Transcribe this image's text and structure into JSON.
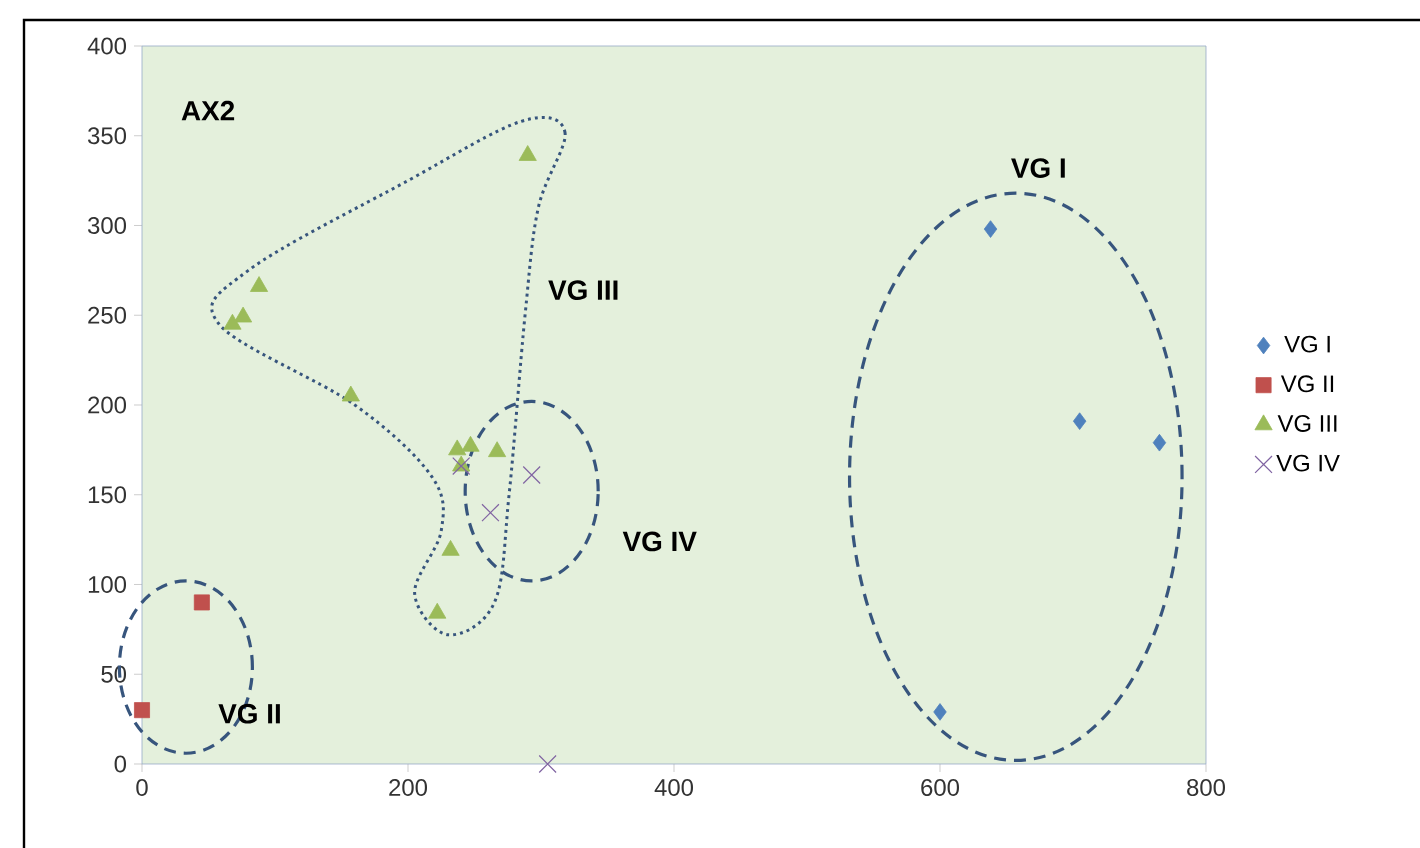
{
  "chart_data": {
    "type": "scatter",
    "xlim": [
      0,
      800
    ],
    "ylim": [
      0,
      400
    ],
    "xticks": [
      0,
      200,
      400,
      600,
      800
    ],
    "yticks": [
      0,
      50,
      100,
      150,
      200,
      250,
      300,
      350,
      400
    ],
    "grid": false,
    "legend": "right",
    "annotations": [
      "AX2",
      "VG I",
      "VG II",
      "VG III",
      "VG IV"
    ],
    "series": [
      {
        "name": "VG I",
        "color": "#4f81bd",
        "marker": "diamond",
        "x": [
          638,
          705,
          765,
          600
        ],
        "values": [
          298,
          191,
          179,
          29
        ]
      },
      {
        "name": "VG II",
        "color": "#c0504d",
        "marker": "square",
        "x": [
          0,
          45
        ],
        "values": [
          30,
          90
        ]
      },
      {
        "name": "VG III",
        "color": "#9bbb59",
        "marker": "triangle",
        "x": [
          290,
          88,
          76,
          68,
          157,
          237,
          247,
          267,
          240,
          232,
          222
        ],
        "values": [
          339,
          266,
          249,
          245,
          205,
          175,
          177,
          174,
          166,
          119,
          84
        ]
      },
      {
        "name": "VG IV",
        "color": "#8064a2",
        "marker": "cross",
        "x": [
          240,
          293,
          262,
          305
        ],
        "values": [
          166,
          161,
          140,
          0
        ]
      }
    ]
  }
}
